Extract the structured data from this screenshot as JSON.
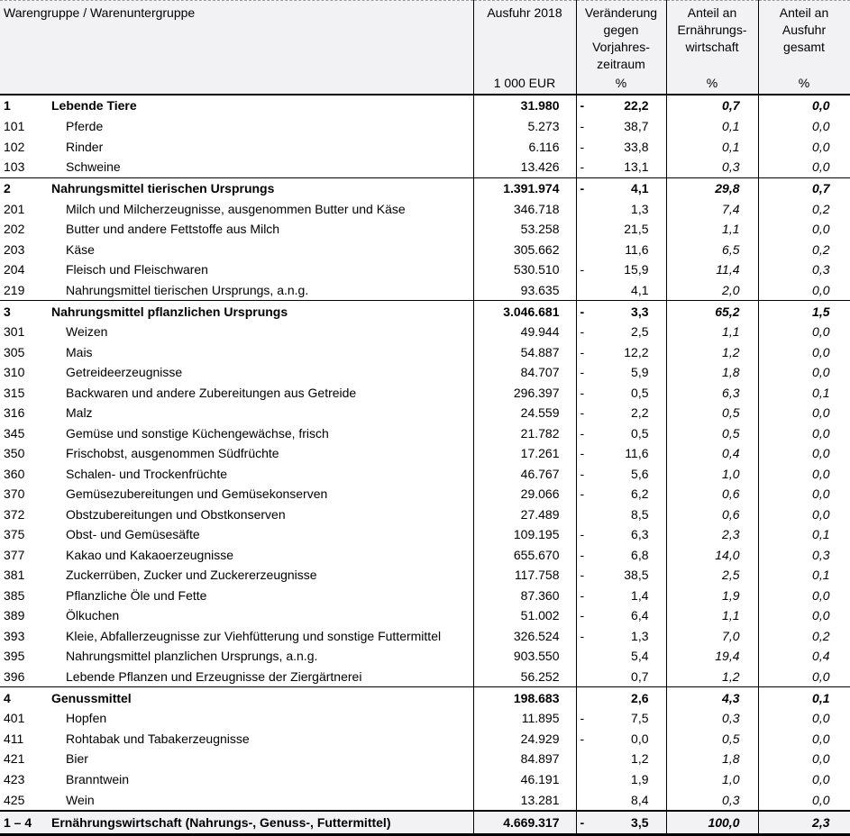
{
  "table": {
    "columns": {
      "c1_title": "Warengruppe / Warenuntergruppe",
      "c2_title": "Ausfuhr 2018",
      "c2_unit": "1 000 EUR",
      "c3_title": "Veränderung\ngegen\nVorjahres-\nzeitraum",
      "c3_unit": "%",
      "c4_title": "Anteil an\nErnährungs-\nwirtschaft",
      "c4_unit": "%",
      "c5_title": "Anteil an\nAusfuhr\ngesamt",
      "c5_unit": "%"
    },
    "colors": {
      "header_background": "#f2f1f4",
      "total_row_background": "#f2f1f4",
      "border": "#000000",
      "top_dashed_border": "#9a9a9a"
    },
    "rows": [
      {
        "code": "1",
        "label": "Lebende Tiere",
        "type": "group",
        "value": "31.980",
        "neg": true,
        "change": "22,2",
        "share_food": "0,7",
        "share_export": "0,0"
      },
      {
        "code": "101",
        "label": "Pferde",
        "type": "sub",
        "value": "5.273",
        "neg": true,
        "change": "38,7",
        "share_food": "0,1",
        "share_export": "0,0"
      },
      {
        "code": "102",
        "label": "Rinder",
        "type": "sub",
        "value": "6.116",
        "neg": true,
        "change": "33,8",
        "share_food": "0,1",
        "share_export": "0,0"
      },
      {
        "code": "103",
        "label": "Schweine",
        "type": "sub",
        "value": "13.426",
        "neg": true,
        "change": "13,1",
        "share_food": "0,3",
        "share_export": "0,0"
      },
      {
        "code": "2",
        "label": "Nahrungsmittel tierischen Ursprungs",
        "type": "group",
        "value": "1.391.974",
        "neg": true,
        "change": "4,1",
        "share_food": "29,8",
        "share_export": "0,7"
      },
      {
        "code": "201",
        "label": "Milch und Milcherzeugnisse, ausgenommen Butter und Käse",
        "type": "sub",
        "value": "346.718",
        "neg": false,
        "change": "1,3",
        "share_food": "7,4",
        "share_export": "0,2"
      },
      {
        "code": "202",
        "label": "Butter und andere Fettstoffe aus Milch",
        "type": "sub",
        "value": "53.258",
        "neg": false,
        "change": "21,5",
        "share_food": "1,1",
        "share_export": "0,0"
      },
      {
        "code": "203",
        "label": "Käse",
        "type": "sub",
        "value": "305.662",
        "neg": false,
        "change": "11,6",
        "share_food": "6,5",
        "share_export": "0,2"
      },
      {
        "code": "204",
        "label": "Fleisch und Fleischwaren",
        "type": "sub",
        "value": "530.510",
        "neg": true,
        "change": "15,9",
        "share_food": "11,4",
        "share_export": "0,3"
      },
      {
        "code": "219",
        "label": "Nahrungsmittel tierischen Ursprungs, a.n.g.",
        "type": "sub",
        "value": "93.635",
        "neg": false,
        "change": "4,1",
        "share_food": "2,0",
        "share_export": "0,0"
      },
      {
        "code": "3",
        "label": "Nahrungsmittel pflanzlichen Ursprungs",
        "type": "group",
        "value": "3.046.681",
        "neg": true,
        "change": "3,3",
        "share_food": "65,2",
        "share_export": "1,5"
      },
      {
        "code": "301",
        "label": "Weizen",
        "type": "sub",
        "value": "49.944",
        "neg": true,
        "change": "2,5",
        "share_food": "1,1",
        "share_export": "0,0"
      },
      {
        "code": "305",
        "label": "Mais",
        "type": "sub",
        "value": "54.887",
        "neg": true,
        "change": "12,2",
        "share_food": "1,2",
        "share_export": "0,0"
      },
      {
        "code": "310",
        "label": "Getreideerzeugnisse",
        "type": "sub",
        "value": "84.707",
        "neg": true,
        "change": "5,9",
        "share_food": "1,8",
        "share_export": "0,0"
      },
      {
        "code": "315",
        "label": "Backwaren und andere Zubereitungen aus Getreide",
        "type": "sub",
        "value": "296.397",
        "neg": true,
        "change": "0,5",
        "share_food": "6,3",
        "share_export": "0,1"
      },
      {
        "code": "316",
        "label": "Malz",
        "type": "sub",
        "value": "24.559",
        "neg": true,
        "change": "2,2",
        "share_food": "0,5",
        "share_export": "0,0"
      },
      {
        "code": "345",
        "label": "Gemüse und sonstige Küchengewächse, frisch",
        "type": "sub",
        "value": "21.782",
        "neg": true,
        "change": "0,5",
        "share_food": "0,5",
        "share_export": "0,0"
      },
      {
        "code": "350",
        "label": "Frischobst, ausgenommen Südfrüchte",
        "type": "sub",
        "value": "17.261",
        "neg": true,
        "change": "11,6",
        "share_food": "0,4",
        "share_export": "0,0"
      },
      {
        "code": "360",
        "label": "Schalen- und Trockenfrüchte",
        "type": "sub",
        "value": "46.767",
        "neg": true,
        "change": "5,6",
        "share_food": "1,0",
        "share_export": "0,0"
      },
      {
        "code": "370",
        "label": "Gemüsezubereitungen und Gemüsekonserven",
        "type": "sub",
        "value": "29.066",
        "neg": true,
        "change": "6,2",
        "share_food": "0,6",
        "share_export": "0,0"
      },
      {
        "code": "372",
        "label": "Obstzubereitungen und Obstkonserven",
        "type": "sub",
        "value": "27.489",
        "neg": false,
        "change": "8,5",
        "share_food": "0,6",
        "share_export": "0,0"
      },
      {
        "code": "375",
        "label": "Obst- und Gemüsesäfte",
        "type": "sub",
        "value": "109.195",
        "neg": true,
        "change": "6,3",
        "share_food": "2,3",
        "share_export": "0,1"
      },
      {
        "code": "377",
        "label": "Kakao und Kakaoerzeugnisse",
        "type": "sub",
        "value": "655.670",
        "neg": true,
        "change": "6,8",
        "share_food": "14,0",
        "share_export": "0,3"
      },
      {
        "code": "381",
        "label": "Zuckerrüben, Zucker und Zuckererzeugnisse",
        "type": "sub",
        "value": "117.758",
        "neg": true,
        "change": "38,5",
        "share_food": "2,5",
        "share_export": "0,1"
      },
      {
        "code": "385",
        "label": "Pflanzliche Öle und Fette",
        "type": "sub",
        "value": "87.360",
        "neg": true,
        "change": "1,4",
        "share_food": "1,9",
        "share_export": "0,0"
      },
      {
        "code": "389",
        "label": "Ölkuchen",
        "type": "sub",
        "value": "51.002",
        "neg": true,
        "change": "6,4",
        "share_food": "1,1",
        "share_export": "0,0"
      },
      {
        "code": "393",
        "label": "Kleie, Abfallerzeugnisse zur Viehfütterung und sonstige Futtermittel",
        "type": "sub",
        "value": "326.524",
        "neg": true,
        "change": "1,3",
        "share_food": "7,0",
        "share_export": "0,2"
      },
      {
        "code": "395",
        "label": "Nahrungsmittel planzlichen Ursprungs, a.n.g.",
        "type": "sub",
        "value": "903.550",
        "neg": false,
        "change": "5,4",
        "share_food": "19,4",
        "share_export": "0,4"
      },
      {
        "code": "396",
        "label": "Lebende Pflanzen und Erzeugnisse der Ziergärtnerei",
        "type": "sub",
        "value": "56.252",
        "neg": false,
        "change": "0,7",
        "share_food": "1,2",
        "share_export": "0,0"
      },
      {
        "code": "4",
        "label": "Genussmittel",
        "type": "group",
        "value": "198.683",
        "neg": false,
        "change": "2,6",
        "share_food": "4,3",
        "share_export": "0,1"
      },
      {
        "code": "401",
        "label": "Hopfen",
        "type": "sub",
        "value": "11.895",
        "neg": true,
        "change": "7,5",
        "share_food": "0,3",
        "share_export": "0,0"
      },
      {
        "code": "411",
        "label": "Rohtabak und Tabakerzeugnisse",
        "type": "sub",
        "value": "24.929",
        "neg": true,
        "change": "0,0",
        "share_food": "0,5",
        "share_export": "0,0"
      },
      {
        "code": "421",
        "label": "Bier",
        "type": "sub",
        "value": "84.897",
        "neg": false,
        "change": "1,2",
        "share_food": "1,8",
        "share_export": "0,0"
      },
      {
        "code": "423",
        "label": "Branntwein",
        "type": "sub",
        "value": "46.191",
        "neg": false,
        "change": "1,9",
        "share_food": "1,0",
        "share_export": "0,0"
      },
      {
        "code": "425",
        "label": "Wein",
        "type": "sub",
        "value": "13.281",
        "neg": false,
        "change": "8,4",
        "share_food": "0,3",
        "share_export": "0,0"
      },
      {
        "code": "1 – 4",
        "label": "Ernährungswirtschaft (Nahrungs-, Genuss-, Futtermittel)",
        "type": "total",
        "value": "4.669.317",
        "neg": true,
        "change": "3,5",
        "share_food": "100,0",
        "share_export": "2,3"
      }
    ]
  }
}
